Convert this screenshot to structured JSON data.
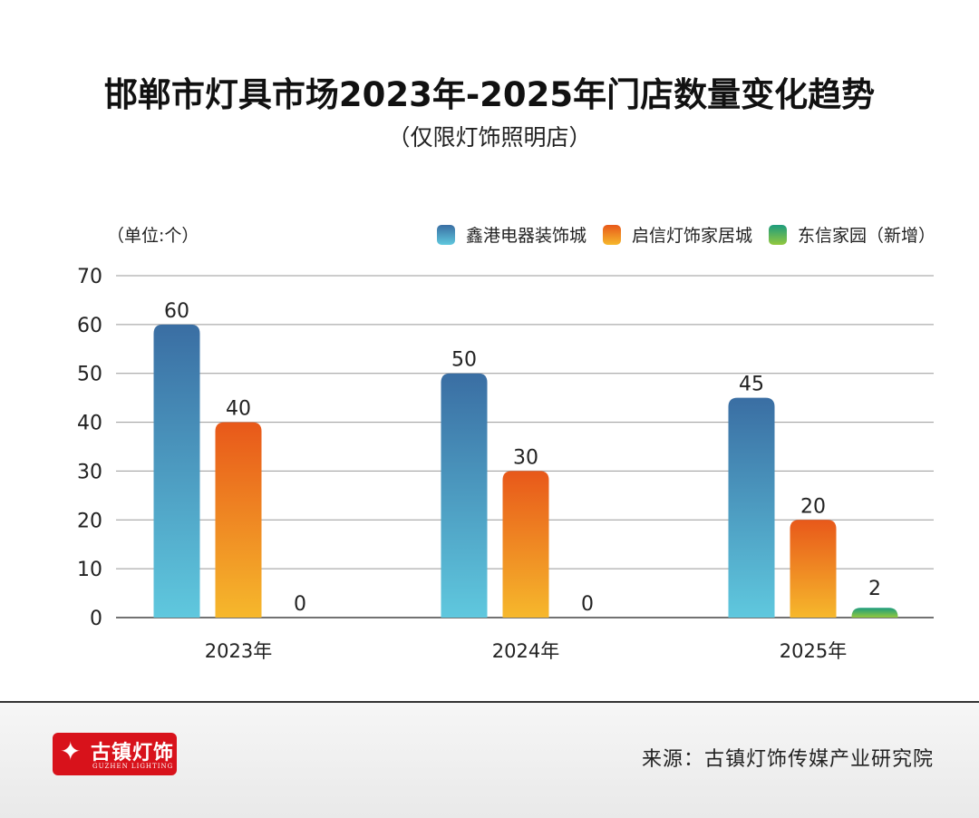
{
  "title": "邯郸市灯具市场2023年-2025年门店数量变化趋势",
  "subtitle": "（仅限灯饰照明店）",
  "unit_label": "（单位:个）",
  "source": "来源：古镇灯饰传媒产业研究院",
  "logo": {
    "text_cn": "古镇灯饰",
    "text_en": "GUZHEN LIGHTING"
  },
  "colors": {
    "grid": "#999999",
    "logo_red": "#d8121b"
  },
  "chart_data": {
    "type": "bar",
    "title": "邯郸市灯具市场2023年-2025年门店数量变化趋势",
    "categories": [
      "2023年",
      "2024年",
      "2025年"
    ],
    "ylim": [
      0,
      70
    ],
    "yticks": [
      0,
      10,
      20,
      30,
      40,
      50,
      60,
      70
    ],
    "grid": true,
    "legend_position": "top-right",
    "series": [
      {
        "name": "鑫港电器装饰城",
        "values": [
          60,
          50,
          45
        ],
        "color_top": "#3a6ea3",
        "color_bottom": "#5fc8de"
      },
      {
        "name": "启信灯饰家居城",
        "values": [
          40,
          30,
          20
        ],
        "color_top": "#e8581a",
        "color_bottom": "#f6b82c"
      },
      {
        "name": "东信家园（新增）",
        "values": [
          0,
          0,
          2
        ],
        "color_top": "#1d9c7d",
        "color_bottom": "#92c83e"
      }
    ]
  }
}
